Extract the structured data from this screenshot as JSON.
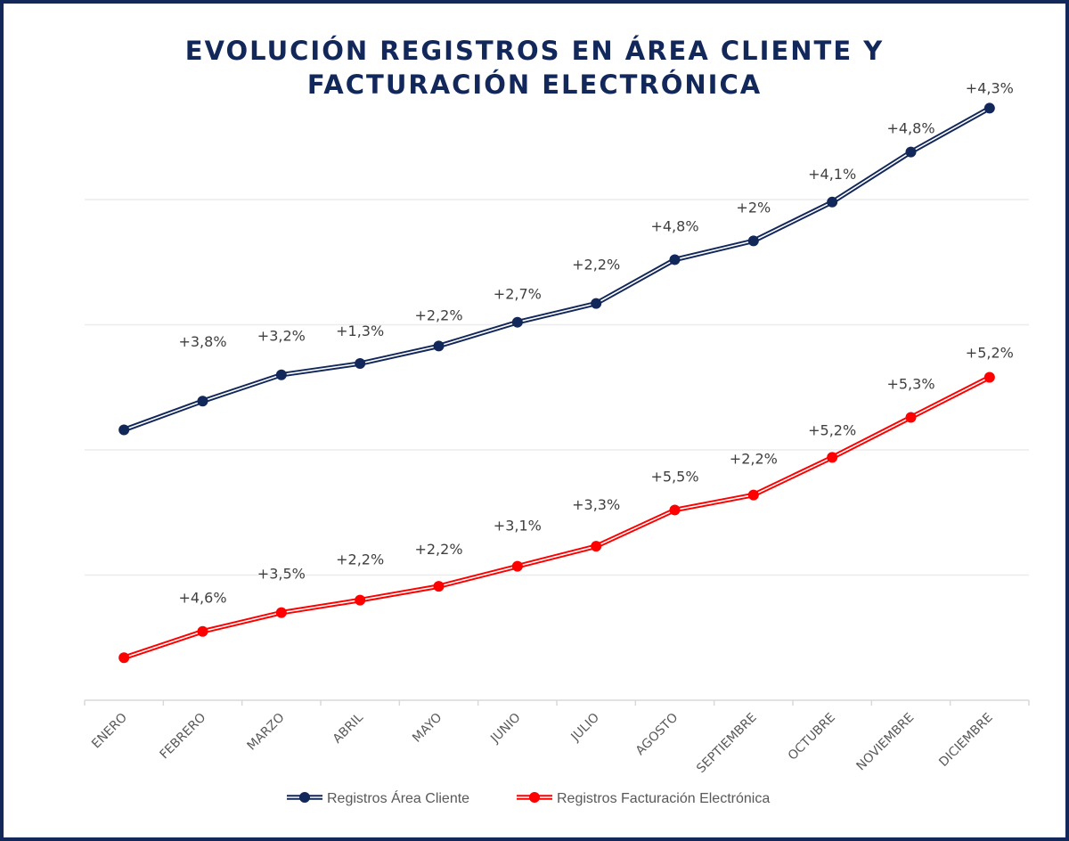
{
  "chart_data": {
    "type": "line",
    "title": "EVOLUCIÓN REGISTROS EN ÁREA CLIENTE Y FACTURACIÓN ELECTRÓNICA",
    "title_lines": [
      "EVOLUCIÓN REGISTROS EN ÁREA CLIENTE Y",
      "FACTURACIÓN ELECTRÓNICA"
    ],
    "xlabel": "",
    "ylabel": "",
    "ylim": [
      0,
      5
    ],
    "grid": true,
    "legend_position": "bottom",
    "categories": [
      "ENERO",
      "FEBRERO",
      "MARZO",
      "ABRIL",
      "MAYO",
      "JUNIO",
      "JULIO",
      "AGOSTO",
      "SEPTIEMBRE",
      "OCTUBRE",
      "NOVIEMBRE",
      "DICIEMBRE"
    ],
    "series": [
      {
        "name": "Registros Área Cliente",
        "color": "#13285a",
        "values": [
          2.16,
          2.39,
          2.6,
          2.69,
          2.83,
          3.02,
          3.17,
          3.52,
          3.67,
          3.98,
          4.38,
          4.73
        ],
        "labels": [
          "",
          "+3,8%",
          "+3,2%",
          "+1,3%",
          "+2,2%",
          "+2,7%",
          "+2,2%",
          "+4,8%",
          "+2%",
          "+4,1%",
          "+4,8%",
          "+4,3%"
        ]
      },
      {
        "name": "Registros Facturación Electrónica",
        "color": "#ff0000",
        "values": [
          0.34,
          0.55,
          0.7,
          0.8,
          0.91,
          1.07,
          1.23,
          1.52,
          1.64,
          1.94,
          2.26,
          2.58
        ],
        "labels": [
          "",
          "+4,6%",
          "+3,5%",
          "+2,2%",
          "+2,2%",
          "+3,1%",
          "+3,3%",
          "+5,5%",
          "+2,2%",
          "+5,2%",
          "+5,3%",
          "+5,2%"
        ]
      }
    ]
  }
}
